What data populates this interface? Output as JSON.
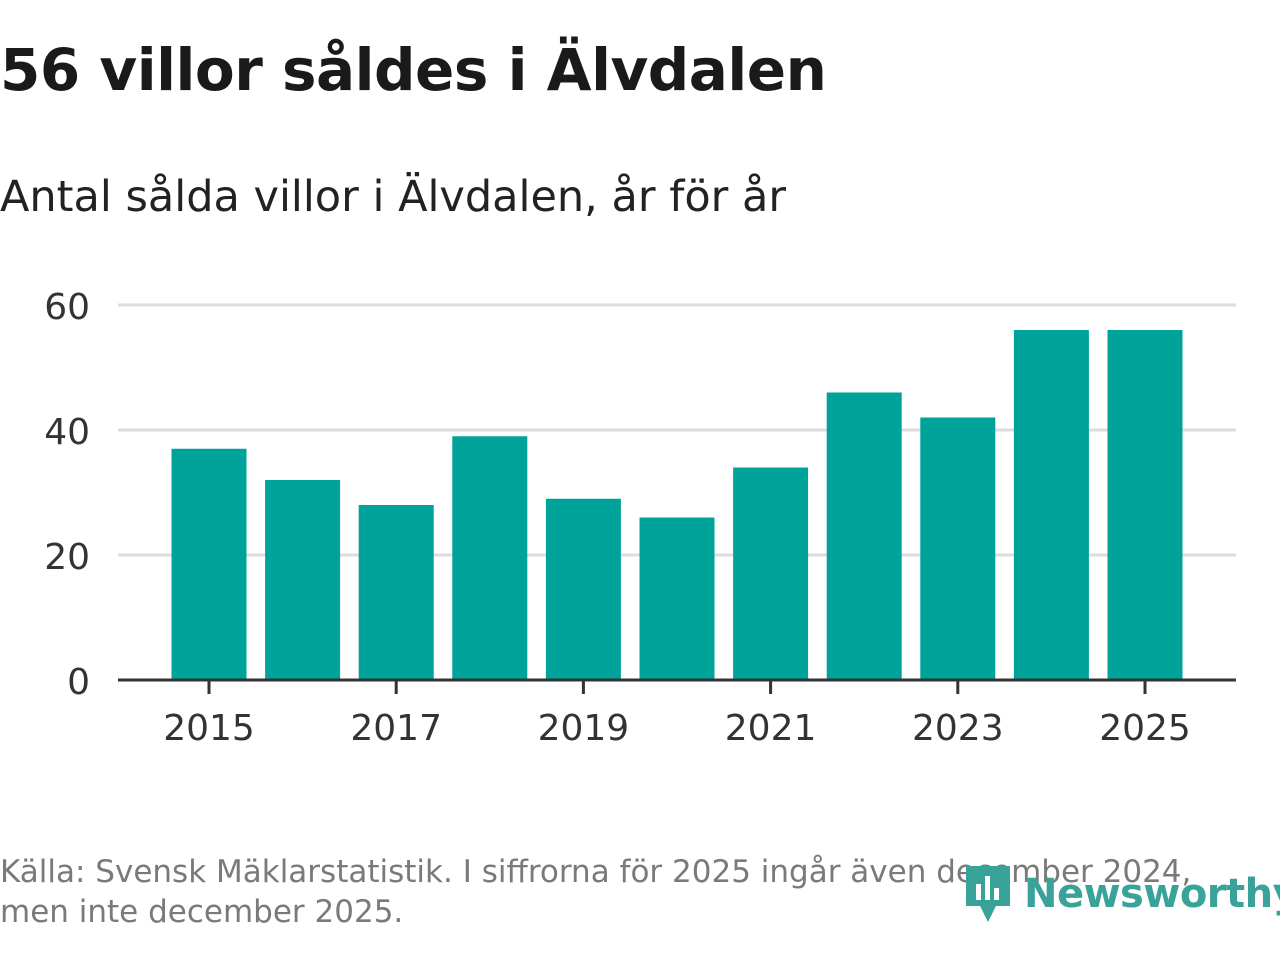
{
  "header": {
    "title": "56 villor såldes i Älvdalen",
    "subtitle": "Antal sålda villor i Älvdalen, år för år"
  },
  "chart_data": {
    "type": "bar",
    "title": "56 villor såldes i Älvdalen",
    "subtitle": "Antal sålda villor i Älvdalen, år för år",
    "categories": [
      "2015",
      "2016",
      "2017",
      "2018",
      "2019",
      "2020",
      "2021",
      "2022",
      "2023",
      "2024",
      "2025"
    ],
    "values": [
      37,
      32,
      28,
      39,
      29,
      26,
      34,
      46,
      42,
      56,
      56
    ],
    "x_tick_labels": [
      "2015",
      "2017",
      "2019",
      "2021",
      "2023",
      "2025"
    ],
    "y_ticks": [
      0,
      20,
      40,
      60
    ],
    "ylim": [
      0,
      60
    ],
    "xlabel": "",
    "ylabel": "",
    "grid": true,
    "bar_color": "#00a39a"
  },
  "footer": {
    "source_line1": "Källa: Svensk Mäklarstatistik. I siffrorna för 2025 ingår även december 2024,",
    "source_line2": "men inte december 2025.",
    "brand": "Newsworthy",
    "brand_color": "#3aa399"
  }
}
